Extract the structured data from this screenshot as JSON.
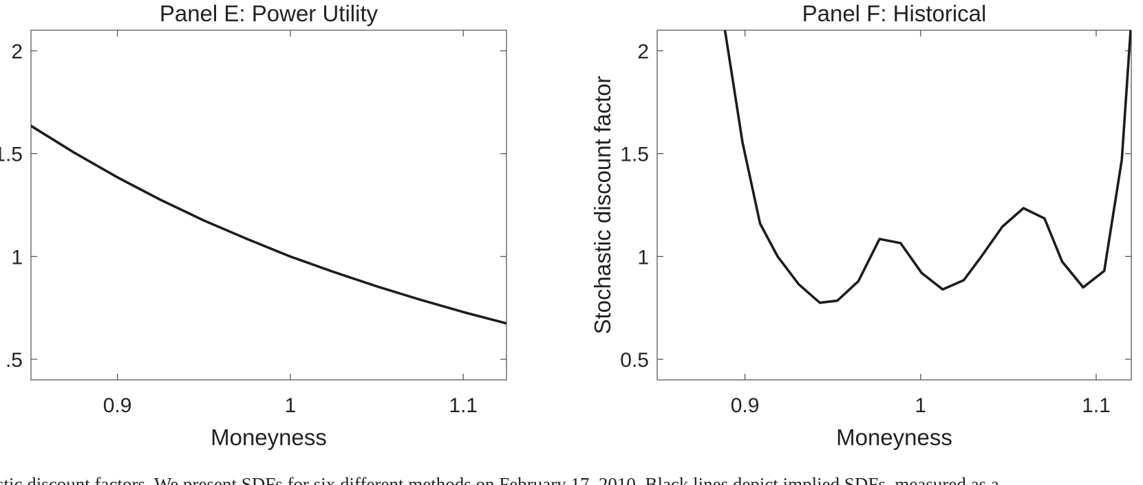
{
  "caption": "stic discount factors. We present SDFs for six different methods on February 17, 2010. Black lines depict implied SDFs, measured as a",
  "chart_data": [
    {
      "type": "line",
      "title": "Panel E: Power Utility",
      "xlabel": "Moneyness",
      "ylabel": "",
      "xlim": [
        0.85,
        1.125
      ],
      "ylim": [
        0.4,
        2.1
      ],
      "xticks": [
        0.9,
        1,
        1.1
      ],
      "xtick_labels": [
        "0.9",
        "1",
        "1.1"
      ],
      "yticks": [
        0.5,
        1,
        1.5,
        2
      ],
      "ytick_labels": [
        ".5",
        "1",
        "1.5",
        "2"
      ],
      "grid": false,
      "series": [
        {
          "color": "#1c1c1c",
          "x": [
            0.85,
            0.875,
            0.9,
            0.925,
            0.95,
            0.975,
            1.0,
            1.025,
            1.05,
            1.075,
            1.1,
            1.125
          ],
          "y": [
            1.635,
            1.505,
            1.385,
            1.275,
            1.175,
            1.085,
            1.0,
            0.925,
            0.855,
            0.79,
            0.73,
            0.675
          ]
        }
      ]
    },
    {
      "type": "line",
      "title": "Panel F: Historical",
      "xlabel": "Moneyness",
      "ylabel": "Stochastic discount factor",
      "xlim": [
        0.85,
        1.12
      ],
      "ylim": [
        0.4,
        2.1
      ],
      "xticks": [
        0.9,
        1,
        1.1
      ],
      "xtick_labels": [
        "0.9",
        "1",
        "1.1"
      ],
      "yticks": [
        0.5,
        1,
        1.5,
        2
      ],
      "ytick_labels": [
        "0.5",
        "1",
        "1.5",
        "2"
      ],
      "grid": false,
      "series": [
        {
          "color": "#1c1c1c",
          "x": [
            0.8886,
            0.8986,
            0.9086,
            0.9186,
            0.9306,
            0.9426,
            0.9526,
            0.9646,
            0.9766,
            0.9886,
            1.0006,
            1.0126,
            1.0246,
            1.0346,
            1.0466,
            1.0586,
            1.0706,
            1.0806,
            1.0926,
            1.1046,
            1.1146,
            1.1196
          ],
          "y": [
            2.1,
            1.555,
            1.16,
            1.0,
            0.865,
            0.775,
            0.785,
            0.88,
            1.085,
            1.065,
            0.92,
            0.84,
            0.885,
            1.0,
            1.145,
            1.235,
            1.185,
            0.975,
            0.85,
            0.93,
            1.47,
            2.1
          ]
        }
      ]
    }
  ]
}
